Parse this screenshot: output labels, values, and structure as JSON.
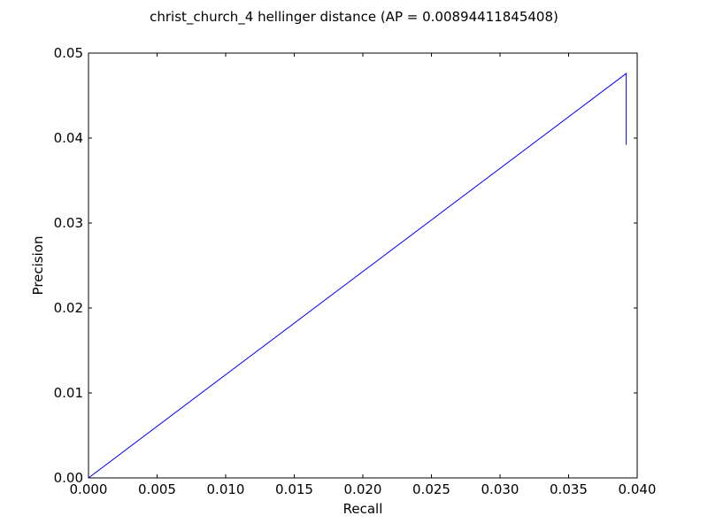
{
  "chart_data": {
    "type": "line",
    "title": "christ_church_4 hellinger distance  (AP = 0.00894411845408)",
    "xlabel": "Recall",
    "ylabel": "Precision",
    "xlim": [
      0.0,
      0.04
    ],
    "ylim": [
      0.0,
      0.05
    ],
    "xticks": [
      0.0,
      0.005,
      0.01,
      0.015,
      0.02,
      0.025,
      0.03,
      0.035,
      0.04
    ],
    "yticks": [
      0.0,
      0.01,
      0.02,
      0.03,
      0.04,
      0.05
    ],
    "xtick_labels": [
      "0.000",
      "0.005",
      "0.010",
      "0.015",
      "0.020",
      "0.025",
      "0.030",
      "0.035",
      "0.040"
    ],
    "ytick_labels": [
      "0.00",
      "0.01",
      "0.02",
      "0.03",
      "0.04",
      "0.05"
    ],
    "grid": false,
    "legend": "none",
    "series": [
      {
        "color": "#0000ff",
        "x": [
          0.0,
          0.0392,
          0.0392
        ],
        "y": [
          0.0,
          0.0476,
          0.0392
        ]
      }
    ]
  }
}
